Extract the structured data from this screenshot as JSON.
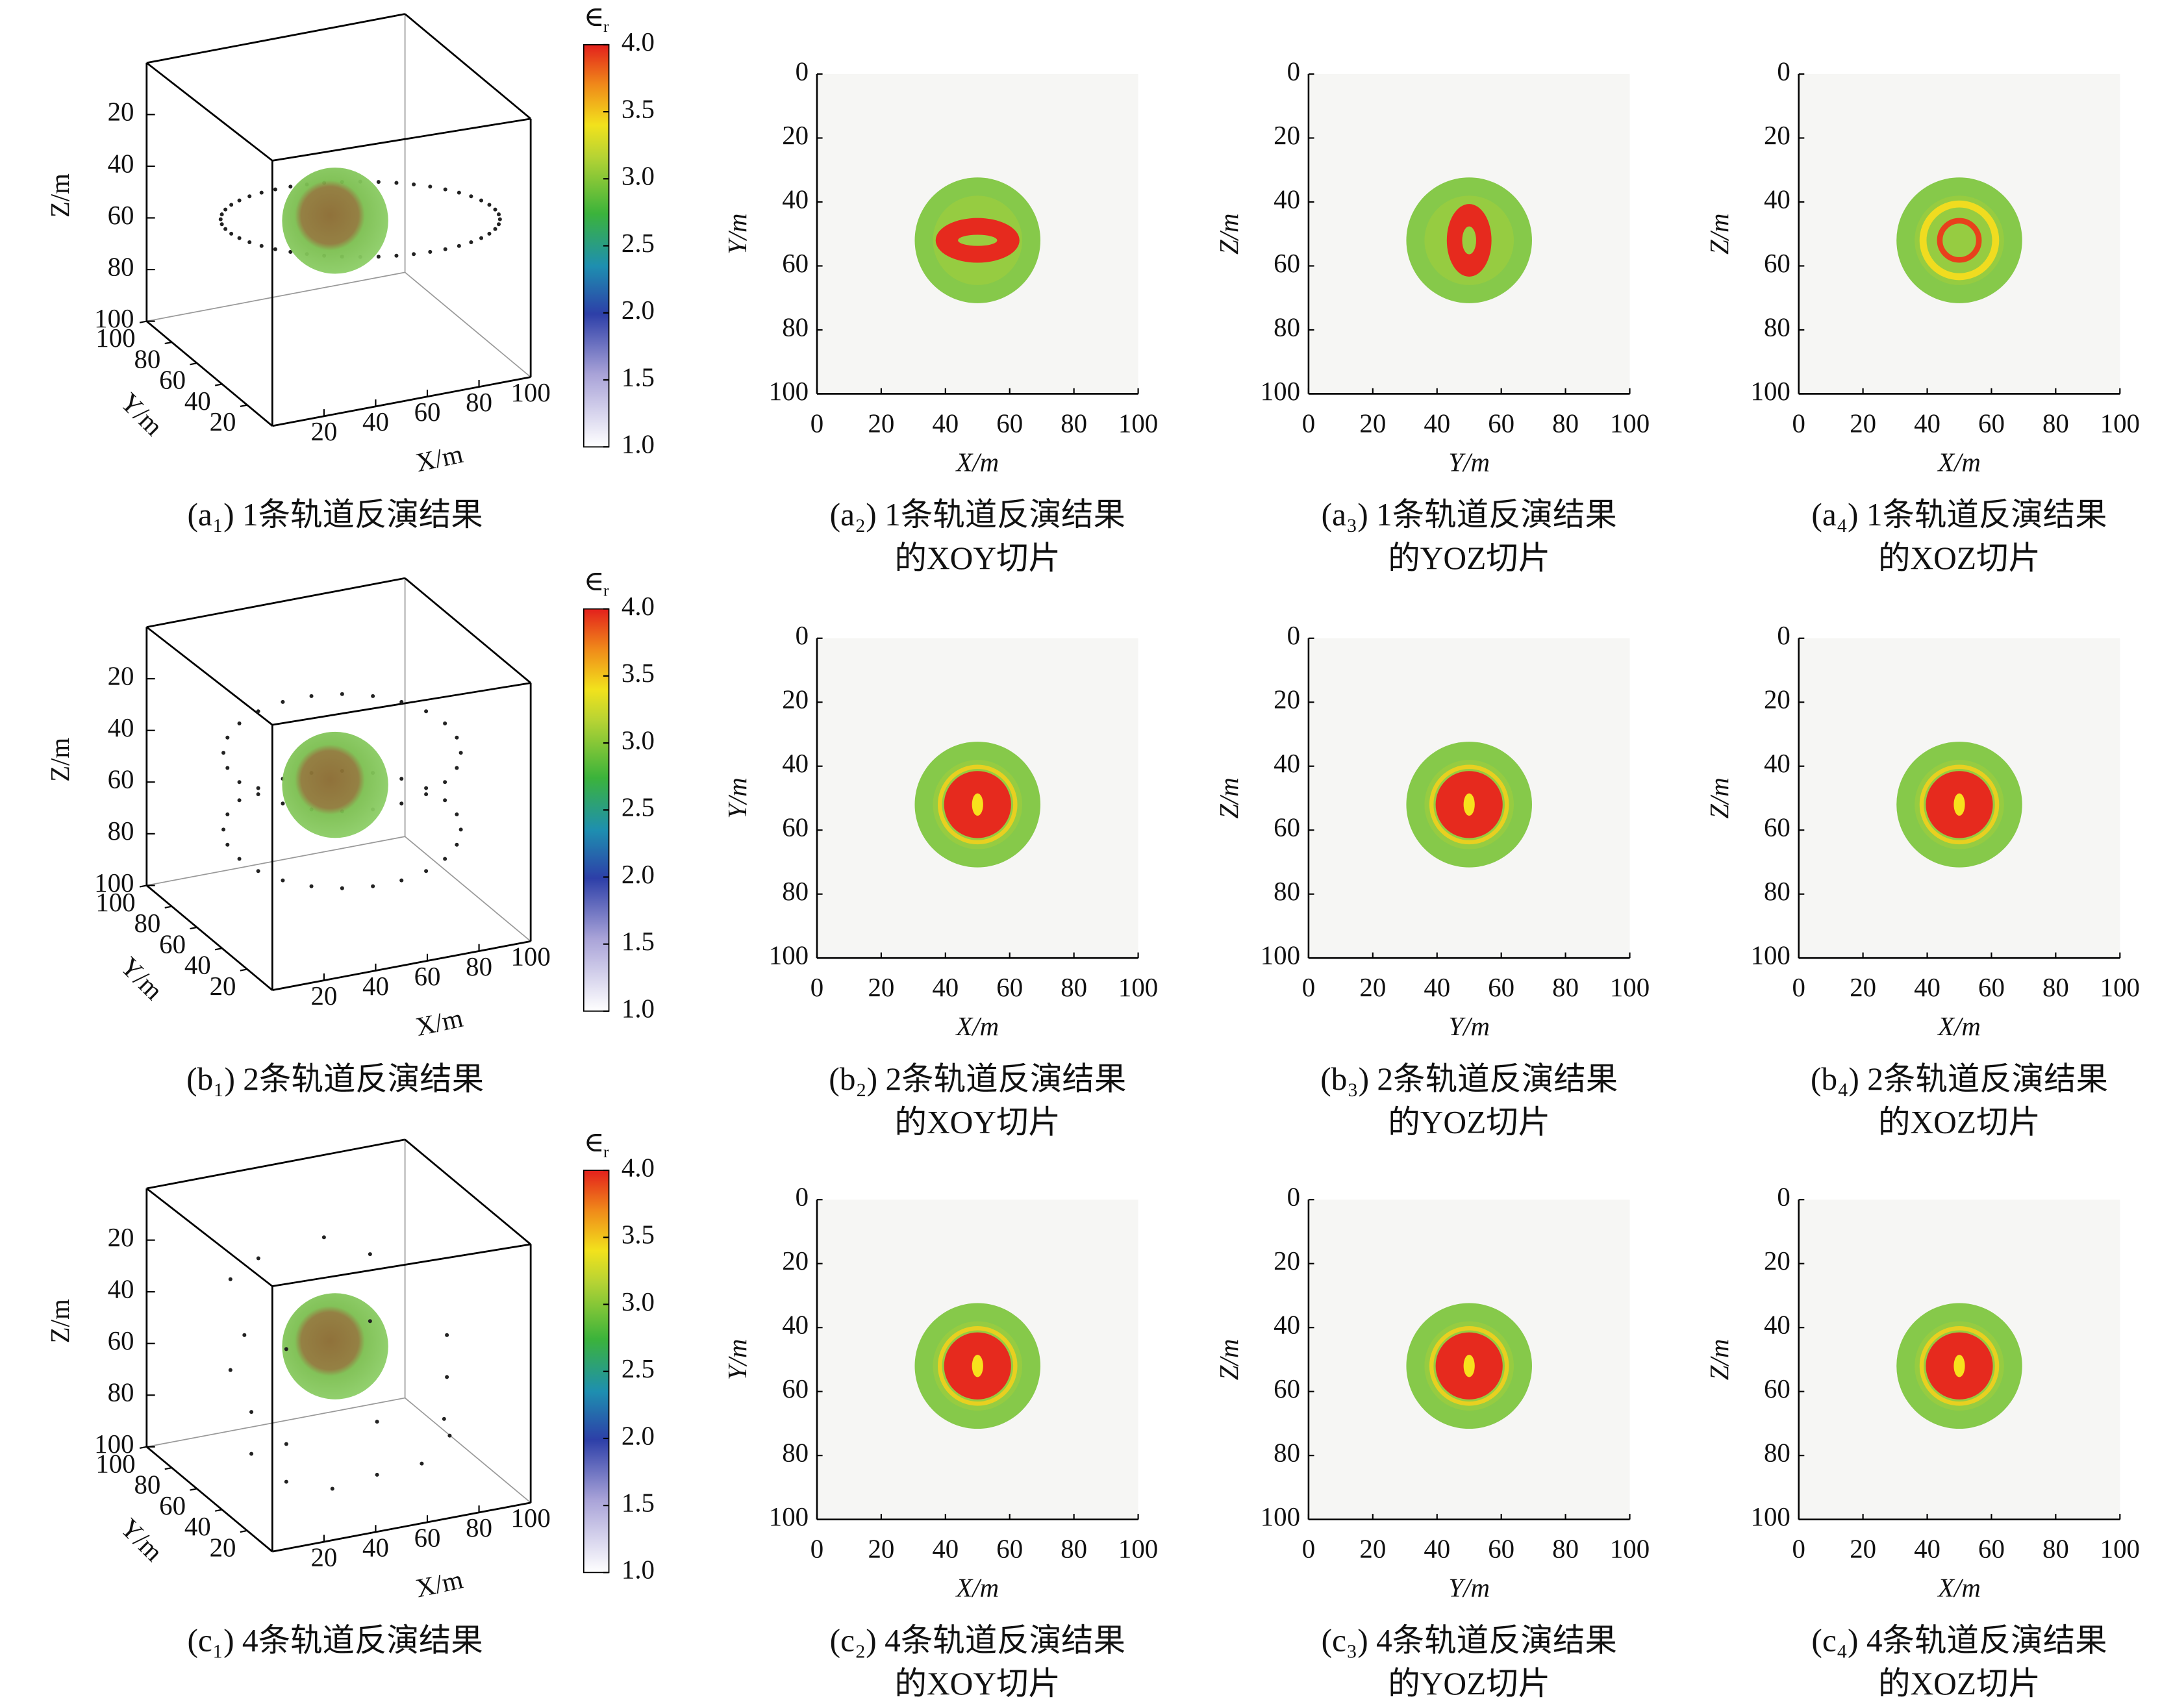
{
  "colorbar": {
    "label": "∈",
    "label_sub": "r",
    "lim": [
      1,
      4
    ],
    "ticks": [
      {
        "value": 1,
        "label": "1.0"
      },
      1.5,
      {
        "value": 2,
        "label": "2.0"
      },
      2.5,
      {
        "value": 3,
        "label": "3.0"
      },
      3.5,
      {
        "value": 4,
        "label": "4.0"
      }
    ]
  },
  "axes3d": {
    "lim": [
      0,
      100
    ],
    "zlabel": "Z/m",
    "ylabel": "Y/m",
    "xlabel": "X/m",
    "zticks": [
      20,
      40,
      60,
      80,
      100
    ],
    "yticks": [
      100,
      80,
      60,
      40,
      20
    ],
    "xticks": [
      20,
      40,
      60,
      80,
      100
    ]
  },
  "slice_lim": [
    0,
    100
  ],
  "slice_ticks": [
    0,
    20,
    40,
    60,
    80,
    100
  ],
  "rows": [
    {
      "caption_3d": "(a₁) 1条轨道反演结果",
      "slices": [
        {
          "xlabel": "X/m",
          "ylabel": "Y/m",
          "caption": [
            "(a₂) 1条轨道反演结果",
            "的XOY切片"
          ]
        },
        {
          "xlabel": "Y/m",
          "ylabel": "Z/m",
          "caption": [
            "(a₃) 1条轨道反演结果",
            "的YOZ切片"
          ]
        },
        {
          "xlabel": "X/m",
          "ylabel": "Z/m",
          "caption": [
            "(a₄) 1条轨道反演结果",
            "的XOZ切片"
          ]
        }
      ]
    },
    {
      "caption_3d": "(b₁) 2条轨道反演结果",
      "slices": [
        {
          "xlabel": "X/m",
          "ylabel": "Y/m",
          "caption": [
            "(b₂) 2条轨道反演结果",
            "的XOY切片"
          ]
        },
        {
          "xlabel": "Y/m",
          "ylabel": "Z/m",
          "caption": [
            "(b₃) 2条轨道反演结果",
            "的YOZ切片"
          ]
        },
        {
          "xlabel": "X/m",
          "ylabel": "Z/m",
          "caption": [
            "(b₄) 2条轨道反演结果",
            "的XOZ切片"
          ]
        }
      ]
    },
    {
      "caption_3d": "(c₁) 4条轨道反演结果",
      "slices": [
        {
          "xlabel": "X/m",
          "ylabel": "Y/m",
          "caption": [
            "(c₂) 4条轨道反演结果",
            "的XOY切片"
          ]
        },
        {
          "xlabel": "Y/m",
          "ylabel": "Z/m",
          "caption": [
            "(c₃) 4条轨道反演结果",
            "的YOZ切片"
          ]
        },
        {
          "xlabel": "X/m",
          "ylabel": "Z/m",
          "caption": [
            "(c₄) 4条轨道反演结果",
            "的XOZ切片"
          ]
        }
      ]
    }
  ]
}
